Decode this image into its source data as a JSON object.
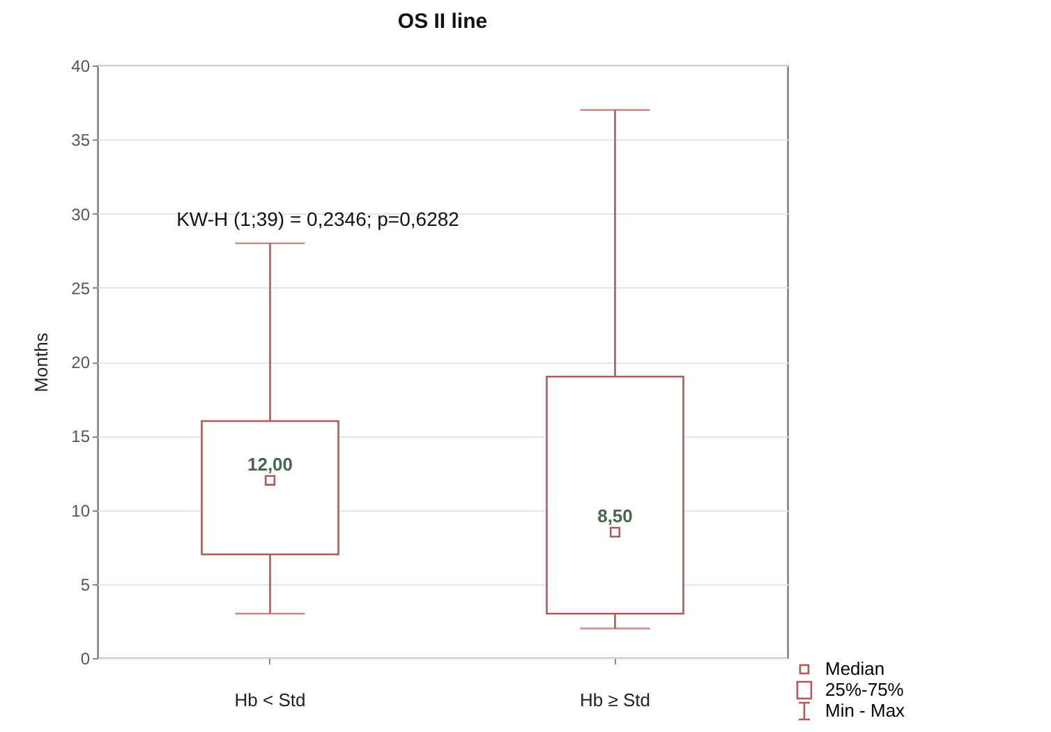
{
  "chart_data": {
    "type": "box",
    "title": "OS II line",
    "ylabel": "Months",
    "categories": [
      "Hb < Std",
      "Hb ≥ Std"
    ],
    "series": [
      {
        "color": "#b05a5a",
        "boxes": [
          {
            "low": 3,
            "q1": 7,
            "median": 12,
            "q3": 16,
            "high": 28
          },
          {
            "low": 2,
            "q1": 3,
            "median": 8.5,
            "q3": 19,
            "high": 37
          }
        ]
      }
    ],
    "ylim": [
      0,
      40
    ],
    "yticks": [
      0,
      5,
      10,
      15,
      20,
      25,
      30,
      35,
      40
    ],
    "grid": "y",
    "marker": "square",
    "annotations": [
      "KW-H (1;39) = 0,2346; p=0,6282",
      {
        "text": "12,00",
        "x": "Hb < Std",
        "y": 12
      },
      {
        "text": "8,50",
        "x": "Hb ≥ Std",
        "y": 8.5
      },
      "Median",
      "25%-75%",
      "Min - Max"
    ]
  }
}
